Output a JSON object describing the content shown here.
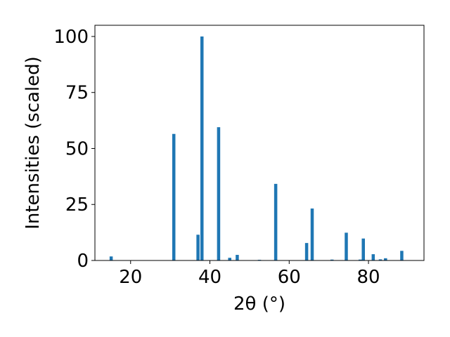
{
  "chart_data": {
    "type": "bar",
    "title": "",
    "xlabel": "2θ (°)",
    "ylabel": "Intensities (scaled)",
    "xlim": [
      11,
      94
    ],
    "ylim": [
      0,
      105
    ],
    "xticks": [
      20,
      40,
      60,
      80
    ],
    "yticks": [
      0,
      25,
      50,
      75,
      100
    ],
    "grid": false,
    "bar_color": "#1f77b4",
    "bar_width": 0.8,
    "x": [
      15.1,
      30.9,
      37.0,
      38.0,
      42.2,
      45.0,
      46.9,
      52.5,
      56.6,
      64.4,
      65.8,
      70.8,
      74.4,
      77.9,
      78.7,
      81.2,
      83.0,
      84.3,
      88.4
    ],
    "values": [
      1.8,
      56.5,
      11.5,
      100,
      59.5,
      1.2,
      2.5,
      0.3,
      34.2,
      7.8,
      23.2,
      0.4,
      12.4,
      0.4,
      9.8,
      2.8,
      0.5,
      1.0,
      4.3
    ]
  }
}
